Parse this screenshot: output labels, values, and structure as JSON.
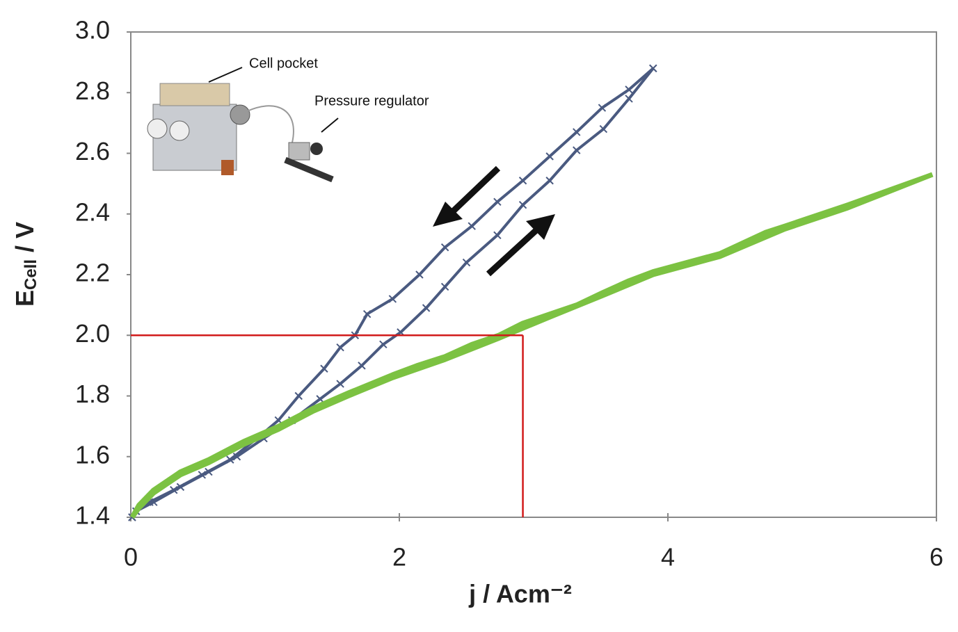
{
  "chart_data": {
    "type": "line",
    "xlabel": "j / Acm⁻²",
    "ylabel": {
      "main": "E",
      "sub": "Cell",
      "unit": " / V"
    },
    "xlim": [
      0,
      6
    ],
    "xticks": [
      0,
      2,
      4,
      6
    ],
    "ylim": [
      1.4,
      3.0
    ],
    "yticks": [
      1.4,
      1.6,
      1.8,
      {
        "value": 2,
        "label": "2.0"
      },
      2.2,
      2.4,
      2.6,
      2.8,
      {
        "value": 3,
        "label": "3.0"
      }
    ],
    "annotations": [
      "Cell pocket",
      "Pressure regulator"
    ],
    "reference_point": {
      "x": 2.92,
      "y": 2,
      "color": "#d11a1a"
    },
    "series": [
      {
        "color": "#4a5a80",
        "marker": true,
        "x": [
          0.01,
          0.04,
          0.17,
          0.37,
          0.58,
          0.79,
          0.99,
          1.2,
          1.41,
          1.56,
          1.72,
          1.88,
          2.01,
          2.2,
          2.34,
          2.5,
          2.73,
          2.92,
          3.12,
          3.32,
          3.52,
          3.71,
          3.89
        ],
        "values": [
          1.4,
          1.42,
          1.45,
          1.5,
          1.55,
          1.6,
          1.66,
          1.72,
          1.79,
          1.84,
          1.9,
          1.97,
          2.01,
          2.09,
          2.16,
          2.24,
          2.33,
          2.43,
          2.51,
          2.61,
          2.68,
          2.78,
          2.88
        ]
      },
      {
        "color": "#4a5a80",
        "marker": true,
        "x": [
          3.89,
          3.71,
          3.51,
          3.32,
          3.12,
          2.92,
          2.73,
          2.54,
          2.34,
          2.15,
          1.95,
          1.76,
          1.67,
          1.56,
          1.44,
          1.25,
          1.1,
          0.94,
          0.74,
          0.53,
          0.32,
          0.14,
          0.04,
          0.01
        ],
        "values": [
          2.88,
          2.81,
          2.75,
          2.67,
          2.59,
          2.51,
          2.44,
          2.36,
          2.29,
          2.2,
          2.12,
          2.07,
          2,
          1.96,
          1.89,
          1.8,
          1.72,
          1.66,
          1.59,
          1.54,
          1.49,
          1.45,
          1.42,
          1.4
        ]
      },
      {
        "color": "#7cc242",
        "marker": false,
        "x": [
          0.01,
          0.06,
          0.17,
          0.37,
          0.58,
          0.84,
          1.1,
          1.36,
          1.62,
          1.95,
          2.13,
          2.34,
          2.54,
          2.74,
          2.92,
          3.12,
          3.32,
          3.51,
          3.71,
          3.89,
          4.39,
          4.73,
          4.87,
          5.34,
          5.97
        ],
        "values": [
          1.4,
          1.44,
          1.49,
          1.55,
          1.59,
          1.65,
          1.7,
          1.76,
          1.81,
          1.87,
          1.9,
          1.93,
          1.97,
          2,
          2.04,
          2.07,
          2.1,
          2.14,
          2.18,
          2.21,
          2.27,
          2.34,
          2.36,
          2.43,
          2.53
        ]
      },
      {
        "color": "#7cc242",
        "marker": false,
        "x": [
          5.97,
          5.34,
          4.87,
          4.39,
          3.89,
          3.51,
          3.12,
          2.74,
          2.34,
          1.95,
          1.62,
          1.36,
          1.1,
          0.84,
          0.58,
          0.37,
          0.17,
          0.06,
          0.01
        ],
        "values": [
          2.53,
          2.42,
          2.35,
          2.26,
          2.2,
          2.13,
          2.06,
          1.99,
          1.92,
          1.86,
          1.8,
          1.75,
          1.69,
          1.64,
          1.58,
          1.54,
          1.48,
          1.43,
          1.4
        ]
      }
    ]
  }
}
